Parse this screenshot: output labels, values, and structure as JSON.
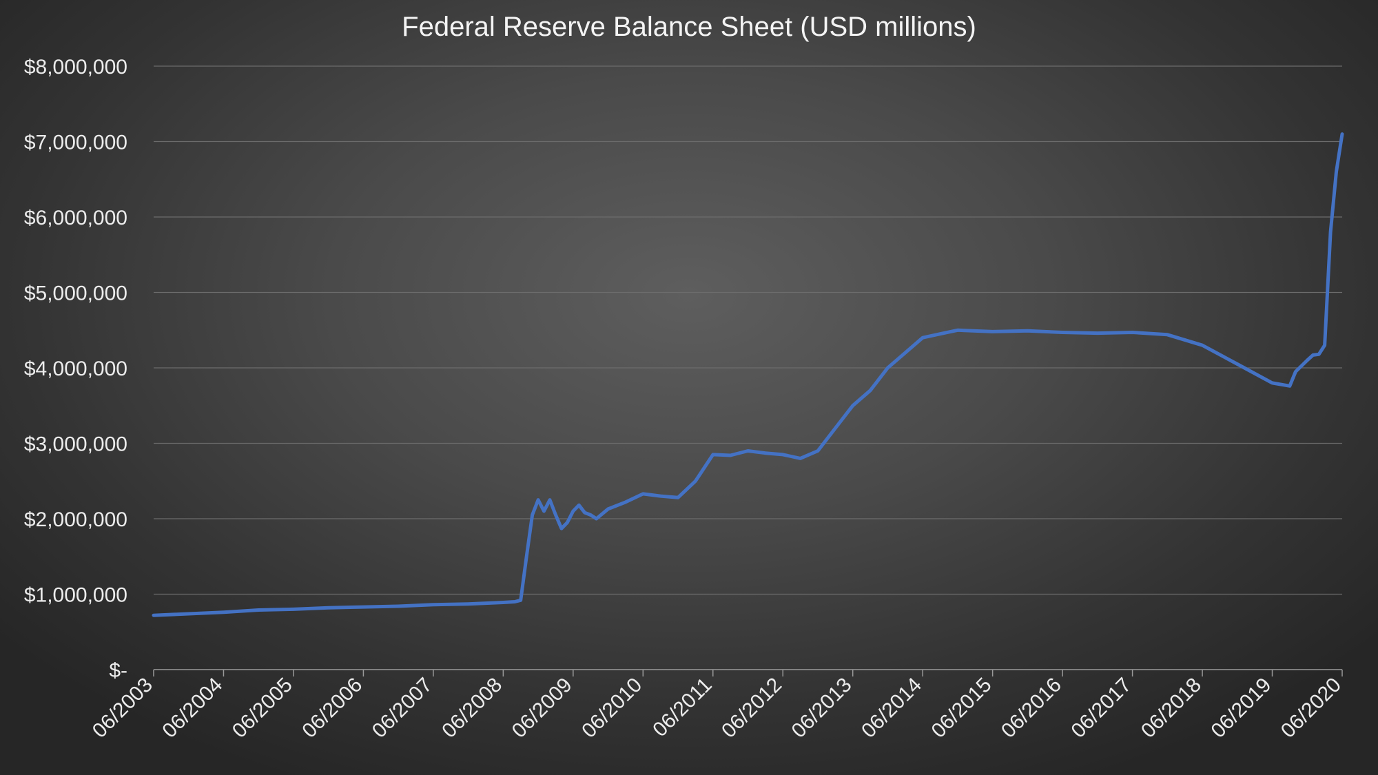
{
  "chart_data": {
    "type": "line",
    "title": "Federal Reserve Balance Sheet (USD millions)",
    "xlabel": "",
    "ylabel": "",
    "x_axis": {
      "type": "date",
      "range": [
        "2003-06",
        "2020-06"
      ],
      "tick_labels": [
        "06/2003",
        "06/2004",
        "06/2005",
        "06/2006",
        "06/2007",
        "06/2008",
        "06/2009",
        "06/2010",
        "06/2011",
        "06/2012",
        "06/2013",
        "06/2014",
        "06/2015",
        "06/2016",
        "06/2017",
        "06/2018",
        "06/2019",
        "06/2020"
      ]
    },
    "y_axis": {
      "range": [
        0,
        8000000
      ],
      "tick_labels": [
        "$-",
        "$1,000,000",
        "$2,000,000",
        "$3,000,000",
        "$4,000,000",
        "$5,000,000",
        "$6,000,000",
        "$7,000,000",
        "$8,000,000"
      ]
    },
    "grid": true,
    "legend": "none",
    "series": [
      {
        "color": "#4472c4",
        "points": [
          [
            "2003-06",
            720000
          ],
          [
            "2003-12",
            740000
          ],
          [
            "2004-06",
            760000
          ],
          [
            "2004-12",
            790000
          ],
          [
            "2005-06",
            800000
          ],
          [
            "2005-12",
            820000
          ],
          [
            "2006-06",
            830000
          ],
          [
            "2006-12",
            840000
          ],
          [
            "2007-06",
            860000
          ],
          [
            "2007-12",
            870000
          ],
          [
            "2008-06",
            890000
          ],
          [
            "2008-08",
            900000
          ],
          [
            "2008-09",
            920000
          ],
          [
            "2008-10",
            1500000
          ],
          [
            "2008-11",
            2050000
          ],
          [
            "2008-12",
            2250000
          ],
          [
            "2009-01",
            2100000
          ],
          [
            "2009-02",
            2250000
          ],
          [
            "2009-03",
            2050000
          ],
          [
            "2009-04",
            1870000
          ],
          [
            "2009-05",
            1950000
          ],
          [
            "2009-06",
            2100000
          ],
          [
            "2009-07",
            2180000
          ],
          [
            "2009-08",
            2080000
          ],
          [
            "2009-09",
            2050000
          ],
          [
            "2009-10",
            2000000
          ],
          [
            "2009-12",
            2130000
          ],
          [
            "2010-03",
            2220000
          ],
          [
            "2010-06",
            2330000
          ],
          [
            "2010-09",
            2300000
          ],
          [
            "2010-12",
            2280000
          ],
          [
            "2011-03",
            2500000
          ],
          [
            "2011-06",
            2850000
          ],
          [
            "2011-09",
            2840000
          ],
          [
            "2011-12",
            2900000
          ],
          [
            "2012-03",
            2870000
          ],
          [
            "2012-06",
            2850000
          ],
          [
            "2012-09",
            2800000
          ],
          [
            "2012-12",
            2900000
          ],
          [
            "2013-03",
            3200000
          ],
          [
            "2013-06",
            3500000
          ],
          [
            "2013-09",
            3700000
          ],
          [
            "2013-12",
            4000000
          ],
          [
            "2014-03",
            4200000
          ],
          [
            "2014-06",
            4400000
          ],
          [
            "2014-09",
            4450000
          ],
          [
            "2014-12",
            4500000
          ],
          [
            "2015-06",
            4480000
          ],
          [
            "2015-12",
            4490000
          ],
          [
            "2016-06",
            4470000
          ],
          [
            "2016-12",
            4460000
          ],
          [
            "2017-06",
            4470000
          ],
          [
            "2017-12",
            4440000
          ],
          [
            "2018-06",
            4300000
          ],
          [
            "2018-12",
            4050000
          ],
          [
            "2019-06",
            3800000
          ],
          [
            "2019-09",
            3760000
          ],
          [
            "2019-10",
            3950000
          ],
          [
            "2019-12",
            4100000
          ],
          [
            "2020-01",
            4170000
          ],
          [
            "2020-02",
            4180000
          ],
          [
            "2020-03",
            4300000
          ],
          [
            "2020-04",
            5800000
          ],
          [
            "2020-05",
            6600000
          ],
          [
            "2020-06",
            7100000
          ]
        ]
      }
    ]
  }
}
